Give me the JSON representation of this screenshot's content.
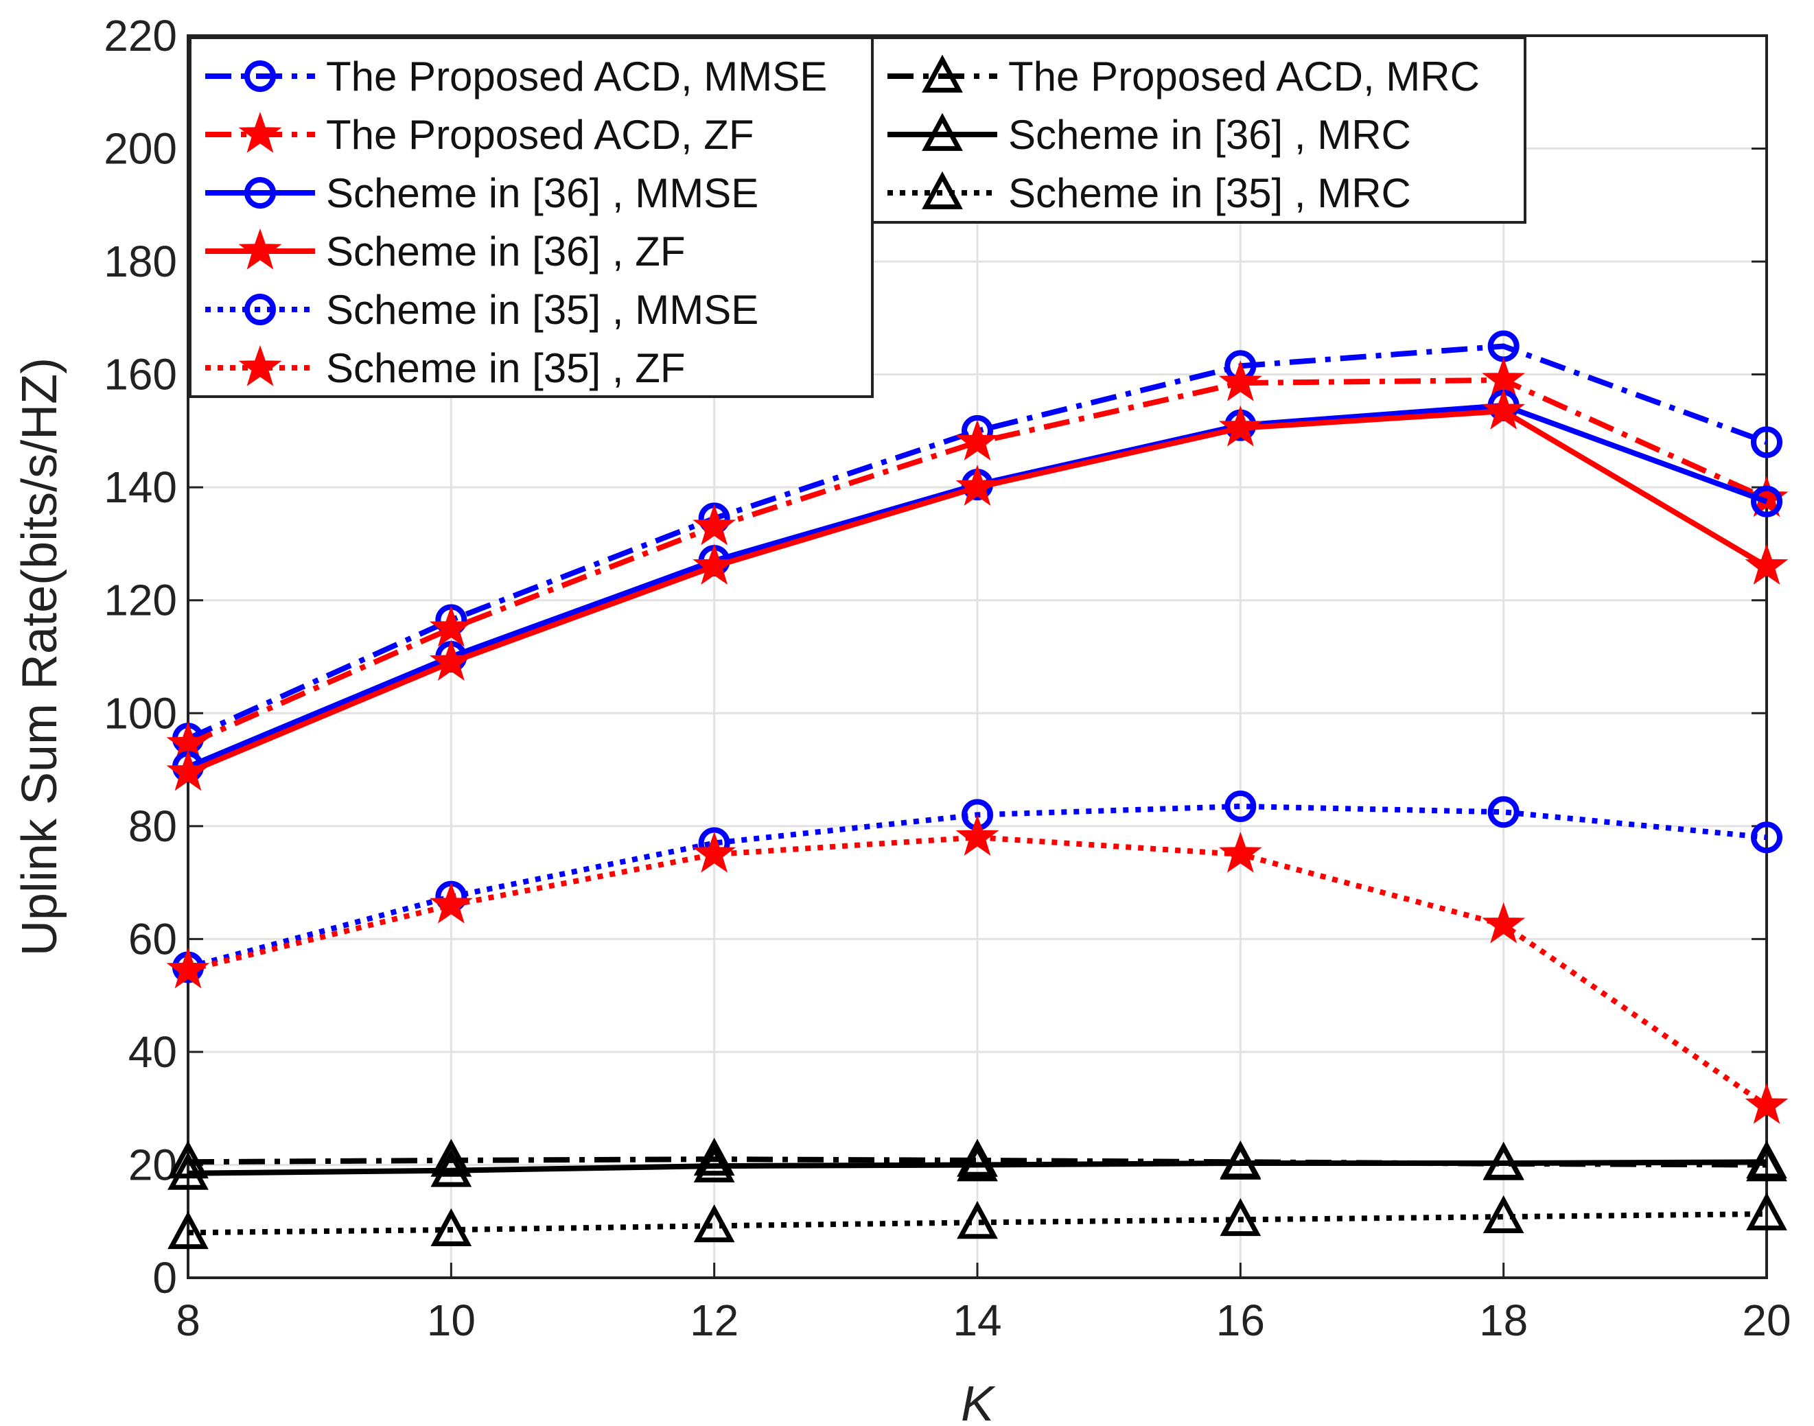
{
  "chart_data": {
    "type": "line",
    "title": "",
    "xlabel": "K",
    "ylabel": "Uplink Sum Rate(bits/s/HZ)",
    "xlim": [
      8,
      20
    ],
    "ylim": [
      0,
      220
    ],
    "x": [
      8,
      10,
      12,
      14,
      16,
      18,
      20
    ],
    "xticks": [
      "8",
      "10",
      "12",
      "14",
      "16",
      "18",
      "20"
    ],
    "yticks": [
      "0",
      "20",
      "40",
      "60",
      "80",
      "100",
      "120",
      "140",
      "160",
      "180",
      "200",
      "220"
    ],
    "grid": true,
    "legend_placement": "top-left, two columns",
    "series": [
      {
        "name": "The Proposed ACD, MMSE",
        "color": "#0000ff",
        "dash": "dashdot",
        "marker": "circle",
        "values": [
          95.5,
          116.5,
          134.5,
          150,
          161.5,
          165,
          148
        ]
      },
      {
        "name": "The Proposed ACD, ZF",
        "color": "#ff0000",
        "dash": "dashdot",
        "marker": "star",
        "values": [
          94.5,
          115,
          133,
          148,
          158.5,
          159,
          138
        ]
      },
      {
        "name": "Scheme in [36] , MMSE",
        "color": "#0000ff",
        "dash": "solid",
        "marker": "circle",
        "values": [
          90.5,
          110,
          127,
          140.5,
          151,
          154.5,
          137.5
        ]
      },
      {
        "name": "Scheme in [36] , ZF",
        "color": "#ff0000",
        "dash": "solid",
        "marker": "star",
        "values": [
          89.5,
          109,
          126,
          140,
          150.5,
          153.5,
          126
        ]
      },
      {
        "name": "Scheme in [35] , MMSE",
        "color": "#0000ff",
        "dash": "dotted",
        "marker": "circle",
        "values": [
          55,
          67.5,
          77,
          82,
          83.5,
          82.5,
          78
        ]
      },
      {
        "name": "Scheme in [35] , ZF",
        "color": "#ff0000",
        "dash": "dotted",
        "marker": "star",
        "values": [
          54.5,
          66,
          75,
          78,
          75,
          62.5,
          30.5
        ]
      },
      {
        "name": "The Proposed ACD, MRC",
        "color": "#000000",
        "dash": "dashdot",
        "marker": "triangle",
        "values": [
          20.5,
          20.8,
          21,
          20.8,
          20.5,
          20.2,
          20
        ]
      },
      {
        "name": "Scheme in [36] , MRC",
        "color": "#000000",
        "dash": "solid",
        "marker": "triangle",
        "values": [
          18.5,
          19,
          19.8,
          20,
          20.3,
          20.3,
          20.5
        ]
      },
      {
        "name": "Scheme in [35] , MRC",
        "color": "#000000",
        "dash": "dotted",
        "marker": "triangle",
        "values": [
          8,
          8.5,
          9.2,
          9.8,
          10.3,
          10.8,
          11.3
        ]
      }
    ]
  }
}
